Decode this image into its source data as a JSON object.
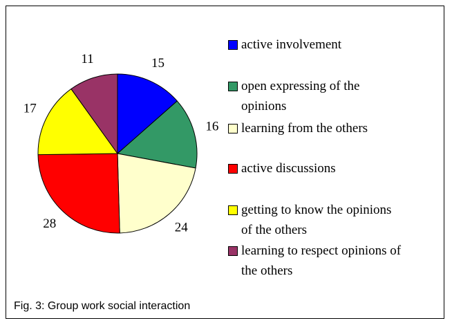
{
  "chart_data": {
    "type": "pie",
    "categories": [
      "active involvement",
      "open expressing of the opinions",
      "learning from the others",
      "active discussions",
      "getting to know the opinions of the others",
      "learning to respect opinions of the others"
    ],
    "values": [
      15,
      16,
      24,
      28,
      17,
      11
    ],
    "colors": [
      "#0000ff",
      "#339966",
      "#ffffcc",
      "#ff0000",
      "#ffff00",
      "#993366"
    ],
    "legend": "right",
    "caption": "Fig. 3: Group work social interaction"
  }
}
